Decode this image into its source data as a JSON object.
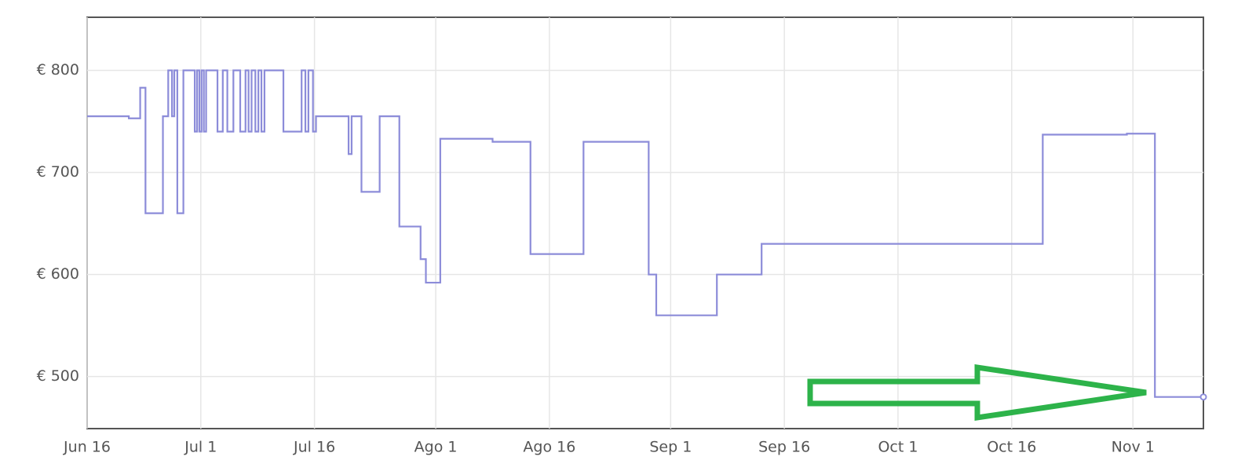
{
  "chart_data": {
    "type": "step",
    "color": "#8c8cd9",
    "grid": true,
    "xlim": [
      0,
      147.3
    ],
    "ylim": [
      449,
      852
    ],
    "xticks": [
      {
        "value": 0,
        "label": "Jun 16"
      },
      {
        "value": 15,
        "label": "Jul 1"
      },
      {
        "value": 30,
        "label": "Jul 16"
      },
      {
        "value": 46,
        "label": "Ago 1"
      },
      {
        "value": 61,
        "label": "Ago 16"
      },
      {
        "value": 77,
        "label": "Sep 1"
      },
      {
        "value": 92,
        "label": "Sep 16"
      },
      {
        "value": 107,
        "label": "Oct 1"
      },
      {
        "value": 122,
        "label": "Oct 16"
      },
      {
        "value": 138,
        "label": "Nov 1"
      }
    ],
    "yticks": [
      {
        "value": 500,
        "label": "€ 500"
      },
      {
        "value": 600,
        "label": "€ 600"
      },
      {
        "value": 700,
        "label": "€ 700"
      },
      {
        "value": 800,
        "label": "€ 800"
      }
    ],
    "x": [
      0,
      5.5,
      7.0,
      7.7,
      10.0,
      10.7,
      11.2,
      11.5,
      11.9,
      12.7,
      14.2,
      14.5,
      14.8,
      15.1,
      15.4,
      15.7,
      17.2,
      17.9,
      18.5,
      19.3,
      20.2,
      20.9,
      21.3,
      21.7,
      22.2,
      22.6,
      23.0,
      23.4,
      25.9,
      28.3,
      28.8,
      29.2,
      29.8,
      30.2,
      34.5,
      34.9,
      36.2,
      38.6,
      41.2,
      44.0,
      44.7,
      46.6,
      53.5,
      58.5,
      65.5,
      74.1,
      75.1,
      83.1,
      89.0,
      126.1,
      137.2,
      140.9,
      147.3
    ],
    "values": [
      755,
      753,
      783,
      660,
      755,
      800,
      755,
      800,
      660,
      800,
      740,
      800,
      740,
      800,
      740,
      800,
      740,
      800,
      740,
      800,
      740,
      800,
      740,
      800,
      740,
      800,
      740,
      800,
      740,
      800,
      740,
      800,
      740,
      755,
      718,
      755,
      681,
      755,
      647,
      615,
      592,
      733,
      730,
      620,
      730,
      600,
      560,
      600,
      630,
      737,
      738,
      480,
      480
    ]
  }
}
